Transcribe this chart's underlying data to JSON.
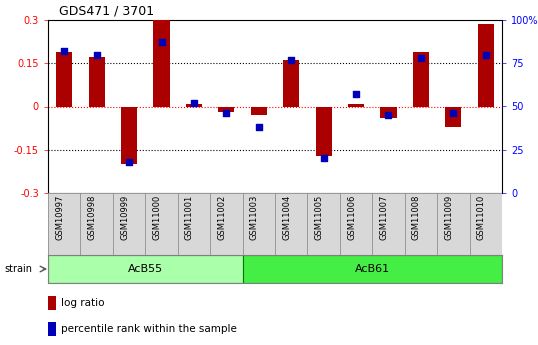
{
  "title": "GDS471 / 3701",
  "samples": [
    "GSM10997",
    "GSM10998",
    "GSM10999",
    "GSM11000",
    "GSM11001",
    "GSM11002",
    "GSM11003",
    "GSM11004",
    "GSM11005",
    "GSM11006",
    "GSM11007",
    "GSM11008",
    "GSM11009",
    "GSM11010"
  ],
  "log_ratio": [
    0.19,
    0.17,
    -0.2,
    0.3,
    0.01,
    -0.02,
    -0.03,
    0.16,
    -0.17,
    0.01,
    -0.04,
    0.19,
    -0.07,
    0.285
  ],
  "pct_rank": [
    82,
    80,
    18,
    87,
    52,
    46,
    38,
    77,
    20,
    57,
    45,
    78,
    46,
    80
  ],
  "group_acb55": {
    "label": "AcB55",
    "start": 0,
    "end": 5,
    "color": "#aaffaa"
  },
  "group_acb61": {
    "label": "AcB61",
    "start": 6,
    "end": 13,
    "color": "#44ee44"
  },
  "ylim_left": [
    -0.3,
    0.3
  ],
  "ylim_right": [
    0,
    100
  ],
  "yticks_left": [
    -0.3,
    -0.15,
    0.0,
    0.15,
    0.3
  ],
  "ytick_labels_left": [
    "-0.3",
    "-0.15",
    "0",
    "0.15",
    "0.3"
  ],
  "yticks_right": [
    0,
    25,
    50,
    75,
    100
  ],
  "ytick_labels_right": [
    "0",
    "25",
    "50",
    "75",
    "100%"
  ],
  "bar_color": "#AA0000",
  "dot_color": "#0000BB",
  "plot_bg": "#FFFFFF",
  "strain_label": "strain",
  "legend": [
    {
      "label": "log ratio",
      "color": "#AA0000"
    },
    {
      "label": "percentile rank within the sample",
      "color": "#0000BB"
    }
  ],
  "title_fontsize": 9,
  "tick_fontsize": 7,
  "label_fontsize": 7.5,
  "bar_width": 0.5,
  "dot_size": 25
}
